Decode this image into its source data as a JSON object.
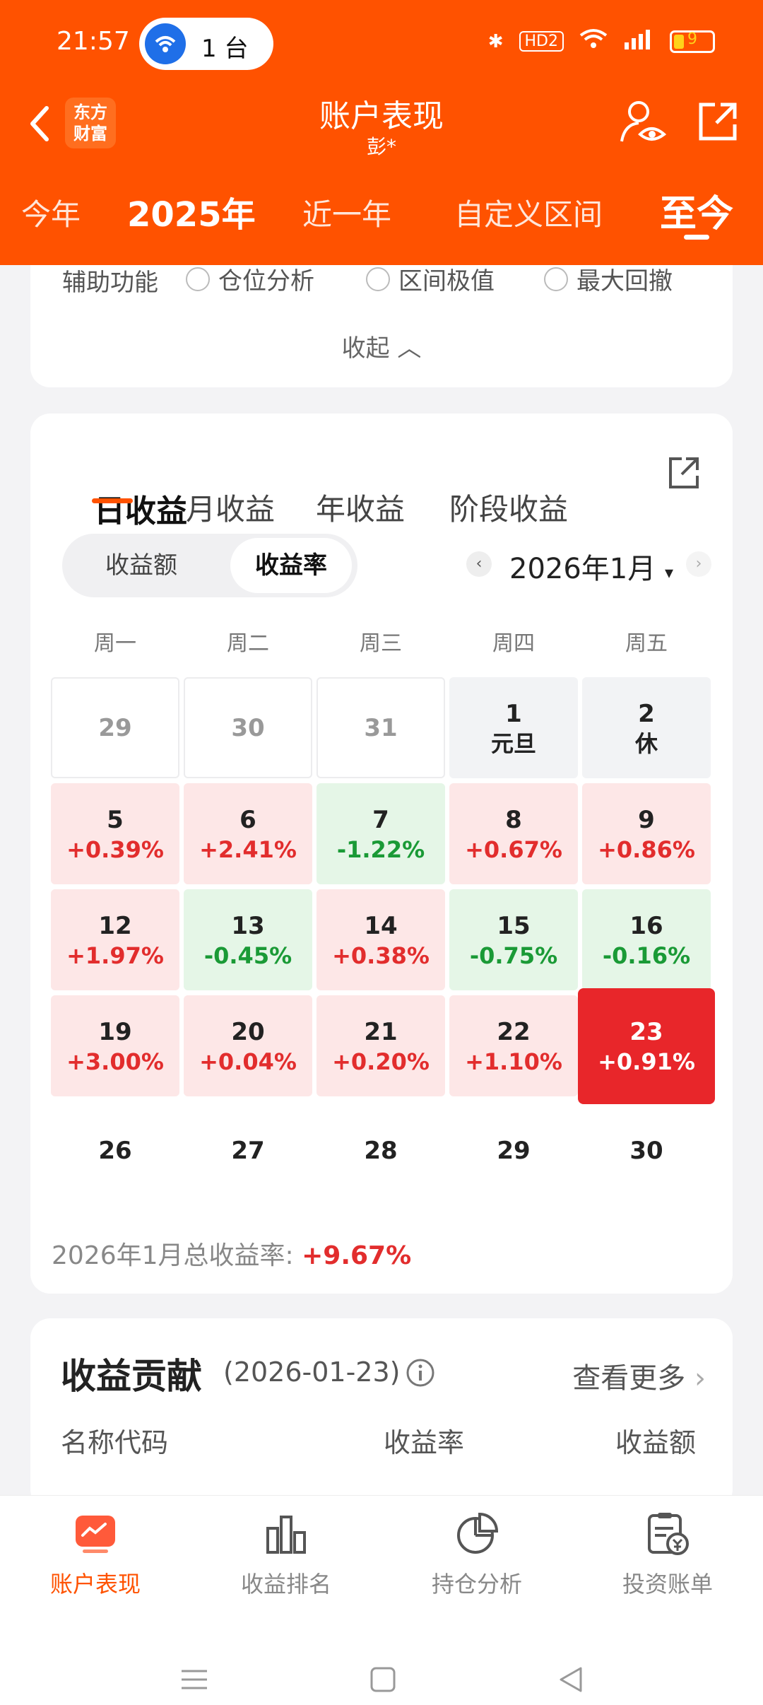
{
  "status_bar": {
    "time": "21:57",
    "pill_text": "1 台",
    "hd_label": "HD2",
    "battery_level": "9"
  },
  "header": {
    "brand_logo": "东方财富",
    "title": "账户表现",
    "subtitle": "彭*",
    "periods": [
      "今年",
      "2025年",
      "近一年",
      "自定义区间",
      "至今"
    ],
    "active_period": "至今"
  },
  "aux": {
    "label": "辅助功能",
    "options": [
      "仓位分析",
      "区间极值",
      "最大回撤"
    ],
    "collapse_label": "收起"
  },
  "returns": {
    "tabs": [
      "日收益",
      "月收益",
      "年收益",
      "阶段收益"
    ],
    "active_tab": "日收益",
    "segments": [
      "收益额",
      "收益率"
    ],
    "active_segment": "收益率",
    "month": "2026年1月",
    "weekdays": [
      "周一",
      "周二",
      "周三",
      "周四",
      "周五"
    ],
    "calendar": [
      [
        {
          "d": "29",
          "v": "",
          "t": "empty"
        },
        {
          "d": "30",
          "v": "",
          "t": "empty"
        },
        {
          "d": "31",
          "v": "",
          "t": "empty"
        },
        {
          "d": "1",
          "v": "元旦",
          "t": "hol"
        },
        {
          "d": "2",
          "v": "休",
          "t": "hol"
        }
      ],
      [
        {
          "d": "5",
          "v": "+0.39%",
          "t": "up"
        },
        {
          "d": "6",
          "v": "+2.41%",
          "t": "up"
        },
        {
          "d": "7",
          "v": "-1.22%",
          "t": "down"
        },
        {
          "d": "8",
          "v": "+0.67%",
          "t": "up"
        },
        {
          "d": "9",
          "v": "+0.86%",
          "t": "up"
        }
      ],
      [
        {
          "d": "12",
          "v": "+1.97%",
          "t": "up"
        },
        {
          "d": "13",
          "v": "-0.45%",
          "t": "down"
        },
        {
          "d": "14",
          "v": "+0.38%",
          "t": "up"
        },
        {
          "d": "15",
          "v": "-0.75%",
          "t": "down"
        },
        {
          "d": "16",
          "v": "-0.16%",
          "t": "down"
        }
      ],
      [
        {
          "d": "19",
          "v": "+3.00%",
          "t": "up"
        },
        {
          "d": "20",
          "v": "+0.04%",
          "t": "up"
        },
        {
          "d": "21",
          "v": "+0.20%",
          "t": "up"
        },
        {
          "d": "22",
          "v": "+1.10%",
          "t": "up"
        },
        {
          "d": "23",
          "v": "+0.91%",
          "t": "sel"
        }
      ],
      [
        {
          "d": "26",
          "v": "",
          "t": "future"
        },
        {
          "d": "27",
          "v": "",
          "t": "future"
        },
        {
          "d": "28",
          "v": "",
          "t": "future"
        },
        {
          "d": "29",
          "v": "",
          "t": "future"
        },
        {
          "d": "30",
          "v": "",
          "t": "future"
        }
      ]
    ],
    "total_label": "2026年1月总收益率: ",
    "total_value": "+9.67%"
  },
  "contribution": {
    "title": "收益贡献",
    "date": "(2026-01-23)",
    "more_label": "查看更多",
    "columns": [
      "名称代码",
      "收益率",
      "收益额"
    ]
  },
  "bottom_nav": [
    "账户表现",
    "收益排名",
    "持仓分析",
    "投资账单"
  ],
  "colors": {
    "brand": "#ff5200",
    "up": "#e22d2d",
    "down": "#1a9a36",
    "selected": "#e8262a"
  }
}
